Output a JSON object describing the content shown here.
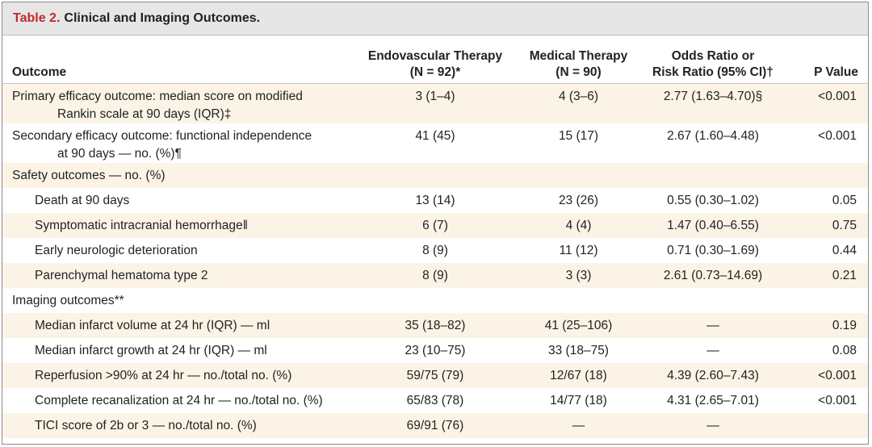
{
  "table": {
    "number": "Table 2.",
    "title": "Clinical and Imaging Outcomes.",
    "headers": {
      "outcome": "Outcome",
      "endo_line1": "Endovascular Therapy",
      "endo_line2": "(N = 92)*",
      "med_line1": "Medical Therapy",
      "med_line2": "(N = 90)",
      "ratio_line1": "Odds Ratio or",
      "ratio_line2": "Risk Ratio (95% CI)†",
      "p": "P Value"
    },
    "rows": [
      {
        "outcome_line1": "Primary efficacy outcome: median score on modified",
        "outcome_line2": "Rankin scale at 90 days (IQR)‡",
        "endo": "3 (1–4)",
        "med": "4 (3–6)",
        "ratio": "2.77 (1.63–4.70)§",
        "p": "<0.001"
      },
      {
        "outcome_line1": "Secondary efficacy outcome: functional independence",
        "outcome_line2": "at 90 days — no. (%)¶",
        "endo": "41 (45)",
        "med": "15 (17)",
        "ratio": "2.67 (1.60–4.48)",
        "p": "<0.001"
      },
      {
        "outcome": "Safety outcomes — no. (%)",
        "endo": "",
        "med": "",
        "ratio": "",
        "p": ""
      },
      {
        "outcome": "Death at 90 days",
        "endo": "13 (14)",
        "med": "23 (26)",
        "ratio": "0.55 (0.30–1.02)",
        "p": "0.05"
      },
      {
        "outcome": "Symptomatic intracranial hemorrhage‖",
        "endo": "6 (7)",
        "med": "4 (4)",
        "ratio": "1.47 (0.40–6.55)",
        "p": "0.75"
      },
      {
        "outcome": "Early neurologic deterioration",
        "endo": "8 (9)",
        "med": "11 (12)",
        "ratio": "0.71 (0.30–1.69)",
        "p": "0.44"
      },
      {
        "outcome": "Parenchymal hematoma type 2",
        "endo": "8 (9)",
        "med": "3 (3)",
        "ratio": "2.61 (0.73–14.69)",
        "p": "0.21"
      },
      {
        "outcome": "Imaging outcomes**",
        "endo": "",
        "med": "",
        "ratio": "",
        "p": ""
      },
      {
        "outcome": "Median infarct volume at 24 hr (IQR) — ml",
        "endo": "35 (18–82)",
        "med": "41 (25–106)",
        "ratio": "—",
        "p": "0.19"
      },
      {
        "outcome": "Median infarct growth at 24 hr (IQR) — ml",
        "endo": "23 (10–75)",
        "med": "33 (18–75)",
        "ratio": "—",
        "p": "0.08"
      },
      {
        "outcome": "Reperfusion >90% at 24 hr — no./total no. (%)",
        "endo": "59/75 (79)",
        "med": "12/67 (18)",
        "ratio": "4.39 (2.60–7.43)",
        "p": "<0.001"
      },
      {
        "outcome": "Complete recanalization at 24 hr — no./total no. (%)",
        "endo": "65/83 (78)",
        "med": "14/77 (18)",
        "ratio": "4.31 (2.65–7.01)",
        "p": "<0.001"
      },
      {
        "outcome": "TICI score of 2b or 3 — no./total no. (%)",
        "endo": "69/91 (76)",
        "med": "—",
        "ratio": "—",
        "p": ""
      }
    ]
  }
}
